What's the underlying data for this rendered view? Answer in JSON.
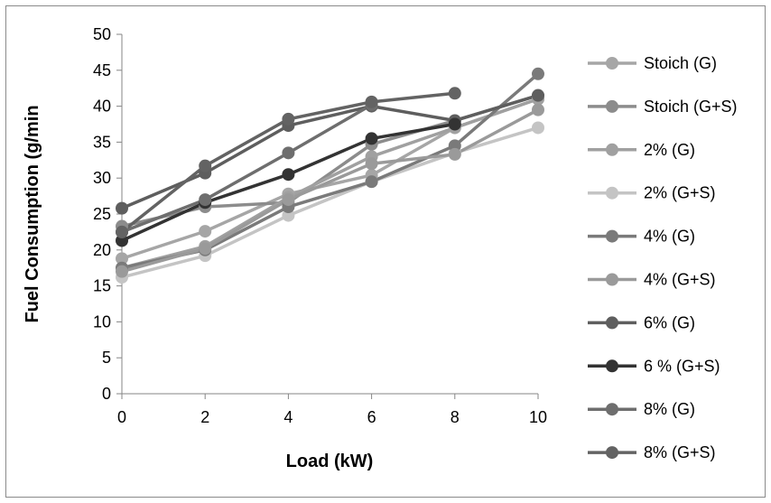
{
  "chart_data": {
    "type": "line",
    "title": "",
    "xlabel": "Load (kW)",
    "ylabel": "Fuel Consumption (g/min",
    "x": [
      0,
      2,
      4,
      6,
      8,
      10
    ],
    "xlim": [
      0,
      10
    ],
    "ylim": [
      0,
      50
    ],
    "xticks": [
      "0",
      "2",
      "4",
      "6",
      "8",
      "10"
    ],
    "yticks": [
      "0",
      "5",
      "10",
      "15",
      "20",
      "25",
      "30",
      "35",
      "40",
      "45",
      "50"
    ],
    "grid": false,
    "legend_position": "right",
    "series": [
      {
        "name": "Stoich (G)",
        "color": "#a6a6a6",
        "values": [
          18.8,
          22.6,
          27.8,
          30.4,
          37.0,
          41.0
        ]
      },
      {
        "name": "Stoich (G+S)",
        "color": "#8c8c8c",
        "values": [
          23.3,
          26.0,
          26.6,
          34.7,
          38.0,
          41.5
        ]
      },
      {
        "name": "2% (G)",
        "color": "#a0a0a0",
        "values": [
          17.5,
          20.5,
          27.3,
          33.0,
          37.0,
          41.0
        ]
      },
      {
        "name": "2% (G+S)",
        "color": "#c4c4c4",
        "values": [
          16.2,
          19.2,
          24.8,
          29.5,
          33.5,
          37.0
        ]
      },
      {
        "name": "4% (G)",
        "color": "#7a7a7a",
        "values": [
          17.5,
          20.0,
          26.0,
          29.5,
          34.5,
          44.5
        ]
      },
      {
        "name": "4% (G+S)",
        "color": "#9a9a9a",
        "values": [
          17.0,
          20.2,
          27.0,
          32.0,
          33.3,
          39.5
        ]
      },
      {
        "name": "6% (G)",
        "color": "#5e5e5e",
        "values": [
          25.8,
          30.7,
          37.3,
          40.0,
          38.0,
          41.5
        ]
      },
      {
        "name": "6 % (G+S)",
        "color": "#333333",
        "values": [
          21.3,
          26.6,
          30.5,
          35.5,
          37.5,
          null
        ]
      },
      {
        "name": "8% (G)",
        "color": "#6e6e6e",
        "values": [
          22.5,
          27.0,
          33.5,
          40.2,
          null,
          null
        ]
      },
      {
        "name": "8% (G+S)",
        "color": "#636363",
        "values": [
          22.5,
          31.7,
          38.2,
          40.6,
          41.8,
          null
        ]
      }
    ]
  }
}
